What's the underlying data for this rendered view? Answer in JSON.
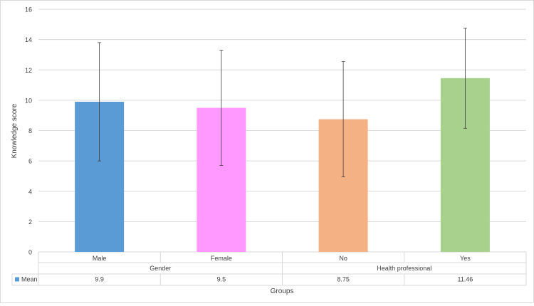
{
  "chart_data": {
    "type": "bar",
    "title": "",
    "ylabel": "Knowledge score",
    "xlabel": "Groups",
    "ylim": [
      0,
      16
    ],
    "y_ticks": [
      0,
      2,
      4,
      6,
      8,
      10,
      12,
      14,
      16
    ],
    "grid": true,
    "categories": [
      "Male",
      "Female",
      "No",
      "Yes"
    ],
    "groups": [
      {
        "label": "Gender",
        "categories": [
          "Male",
          "Female"
        ]
      },
      {
        "label": "Health professional",
        "categories": [
          "No",
          "Yes"
        ]
      }
    ],
    "series": [
      {
        "name": "Mean",
        "values": [
          9.9,
          9.5,
          8.75,
          11.46
        ],
        "value_labels": [
          "9.9",
          "9.5",
          "8.75",
          "11.46"
        ],
        "error_low": [
          6.0,
          5.7,
          4.95,
          8.15
        ],
        "error_high": [
          13.8,
          13.3,
          12.55,
          14.75
        ]
      }
    ],
    "bar_colors": [
      "#5b9bd5",
      "#ff99ff",
      "#f4b183",
      "#a9d18e"
    ],
    "legend_color": "#5b9bd5",
    "legend_placement": "data-table-left"
  }
}
